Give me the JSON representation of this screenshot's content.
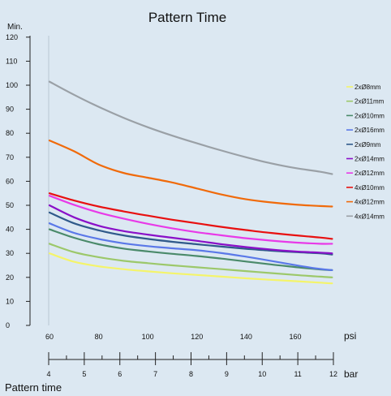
{
  "chart_data": {
    "type": "line",
    "title": "Pattern Time",
    "ylabel": "Min.",
    "ylim": [
      0,
      125
    ],
    "y_ticks": [
      0,
      10,
      20,
      30,
      40,
      50,
      60,
      70,
      80,
      90,
      100,
      110,
      120
    ],
    "x_psi": {
      "unit": "psi",
      "ticks": [
        60,
        80,
        100,
        120,
        140,
        160
      ],
      "range": [
        58,
        175
      ]
    },
    "x_bar": {
      "unit": "bar",
      "ticks": [
        4,
        5,
        6,
        7,
        8,
        9,
        10,
        11,
        12
      ]
    },
    "x": [
      60,
      70,
      80,
      90,
      100,
      110,
      120,
      130,
      140,
      150,
      160,
      170,
      175
    ],
    "series": [
      {
        "name": "2xØ8mm",
        "color": "#f4f46a",
        "values": [
          30,
          26.5,
          24.6,
          23.4,
          22.5,
          21.7,
          21,
          20.3,
          19.6,
          19,
          18.4,
          17.8,
          17.5
        ]
      },
      {
        "name": "2xØ11mm",
        "color": "#9cc86a",
        "values": [
          34,
          30.5,
          28.4,
          26.9,
          25.9,
          25,
          24.2,
          23.4,
          22.6,
          21.8,
          21,
          20.3,
          20
        ]
      },
      {
        "name": "2xØ10mm",
        "color": "#4a8a6a",
        "values": [
          40,
          36.5,
          33.8,
          32,
          30.8,
          29.8,
          28.9,
          27.8,
          26.6,
          25.4,
          24.3,
          23.3,
          23
        ]
      },
      {
        "name": "2xØ16mm",
        "color": "#5a78e8",
        "values": [
          42.5,
          38.5,
          36,
          34.2,
          33,
          32.1,
          31.3,
          30.1,
          28.6,
          26.9,
          25.1,
          23.5,
          23
        ]
      },
      {
        "name": "2xØ9mm",
        "color": "#2f5a8a",
        "values": [
          47,
          42.5,
          39.6,
          37.5,
          36,
          34.8,
          33.8,
          32.8,
          31.9,
          31.1,
          30.5,
          30,
          29.5
        ]
      },
      {
        "name": "2xØ14mm",
        "color": "#8a10c8",
        "values": [
          50,
          45,
          41.5,
          39.3,
          37.8,
          36.5,
          35.2,
          33.8,
          32.6,
          31.6,
          30.8,
          30.3,
          30
        ]
      },
      {
        "name": "2xØ12mm",
        "color": "#e83ae8",
        "values": [
          54,
          50.2,
          47,
          44.5,
          42.3,
          40.4,
          38.8,
          37.5,
          36.3,
          35.3,
          34.5,
          34,
          34
        ]
      },
      {
        "name": "4xØ10mm",
        "color": "#e81010",
        "values": [
          55,
          52,
          49.5,
          47.5,
          45.7,
          44,
          42.5,
          41,
          39.7,
          38.5,
          37.5,
          36.6,
          36
        ]
      },
      {
        "name": "4xØ12mm",
        "color": "#f06a0a",
        "values": [
          77,
          72.5,
          67,
          63.5,
          61.5,
          59.5,
          57,
          54.5,
          52.5,
          51.2,
          50.3,
          49.7,
          49.5
        ]
      },
      {
        "name": "4xØ14mm",
        "color": "#9aa0a6",
        "values": [
          101.5,
          96,
          91,
          86.5,
          82.5,
          79,
          75.8,
          72.8,
          70,
          67.5,
          65.5,
          64,
          63
        ]
      }
    ],
    "grid": false,
    "legend_position": "right"
  },
  "caption": "Pattern time"
}
